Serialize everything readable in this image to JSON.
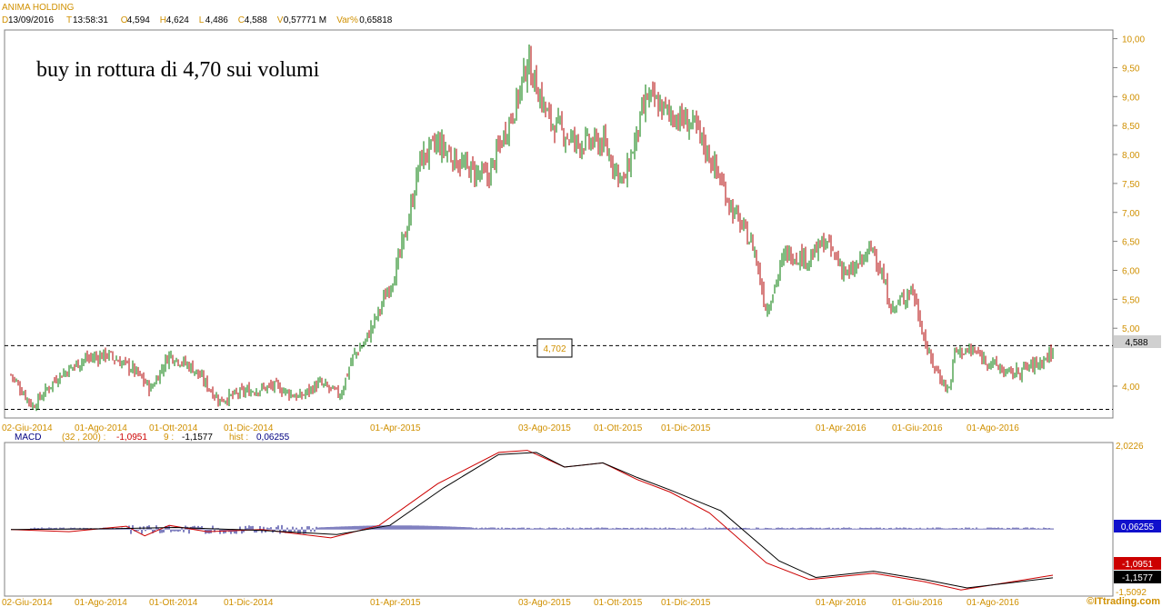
{
  "header": {
    "title": "ANIMA HOLDING",
    "fields": [
      {
        "key": "D",
        "value": "13/09/2016"
      },
      {
        "key": "T",
        "value": "13:58:31"
      },
      {
        "key": "O",
        "value": "4,594"
      },
      {
        "key": "H",
        "value": "4,624"
      },
      {
        "key": "L",
        "value": "4,486"
      },
      {
        "key": "C",
        "value": "4,588"
      },
      {
        "key": "V",
        "value": "0,57771 M"
      },
      {
        "key": "Var%",
        "value": "0,65818"
      }
    ]
  },
  "annotation": "buy in rottura di 4,70 sui volumi",
  "level_box": "4,702",
  "last_price_label": "4,588",
  "price_axis_ticks": [
    "10,00",
    "9,50",
    "9,00",
    "8,50",
    "8,00",
    "7,50",
    "7,00",
    "6,50",
    "6,00",
    "5,50",
    "5,00",
    "4,00"
  ],
  "date_ticks": [
    "02-Giu-2014",
    "01-Ago-2014",
    "01-Ott-2014",
    "01-Dic-2014",
    "01-Apr-2015",
    "03-Ago-2015",
    "01-Ott-2015",
    "01-Dic-2015",
    "01-Apr-2016",
    "01-Giu-2016",
    "01-Ago-2016"
  ],
  "macd_header": {
    "label": "MACD",
    "params": "(32 , 200) :",
    "macd_value": "-1,0951",
    "signal_label": "9 :",
    "signal_value": "-1,1577",
    "hist_label": "hist :",
    "hist_value": "0,06255"
  },
  "macd_axis": {
    "top": "2,0226",
    "bottom": "-1,5092"
  },
  "macd_labels": {
    "hist": "0,06255",
    "macd": "-1,0951",
    "signal": "-1,1577"
  },
  "watermark": "©ITtrading.com",
  "colors": {
    "up": "#007a00",
    "down": "#b00000",
    "macd": "#cc0000",
    "signal": "#000000",
    "hist": "#000080",
    "axis_text": "#d09000"
  },
  "chart_data": [
    {
      "type": "candlestick",
      "title": "ANIMA HOLDING",
      "x_range": [
        "2014-06-02",
        "2016-09-13"
      ],
      "ylim": [
        3.45,
        10.15
      ],
      "horizontal_levels": [
        4.7,
        3.6
      ],
      "points": [
        {
          "date": "2014-06-02",
          "close": 4.2
        },
        {
          "date": "2014-06-20",
          "close": 3.65
        },
        {
          "date": "2014-07-10",
          "close": 4.15
        },
        {
          "date": "2014-07-31",
          "close": 4.45
        },
        {
          "date": "2014-08-20",
          "close": 4.55
        },
        {
          "date": "2014-09-10",
          "close": 4.3
        },
        {
          "date": "2014-09-25",
          "close": 3.95
        },
        {
          "date": "2014-10-10",
          "close": 4.55
        },
        {
          "date": "2014-10-30",
          "close": 4.3
        },
        {
          "date": "2014-11-20",
          "close": 3.75
        },
        {
          "date": "2014-12-10",
          "close": 3.9
        },
        {
          "date": "2015-01-05",
          "close": 4.0
        },
        {
          "date": "2015-01-25",
          "close": 3.8
        },
        {
          "date": "2015-02-10",
          "close": 4.05
        },
        {
          "date": "2015-02-28",
          "close": 3.85
        },
        {
          "date": "2015-03-10",
          "close": 4.5
        },
        {
          "date": "2015-03-20",
          "close": 4.75
        },
        {
          "date": "2015-04-01",
          "close": 5.3
        },
        {
          "date": "2015-04-15",
          "close": 6.0
        },
        {
          "date": "2015-04-25",
          "close": 6.8
        },
        {
          "date": "2015-05-05",
          "close": 7.9
        },
        {
          "date": "2015-05-20",
          "close": 8.2
        },
        {
          "date": "2015-06-10",
          "close": 7.8
        },
        {
          "date": "2015-07-01",
          "close": 7.6
        },
        {
          "date": "2015-07-10",
          "close": 8.1
        },
        {
          "date": "2015-07-25",
          "close": 8.9
        },
        {
          "date": "2015-08-03",
          "close": 9.6
        },
        {
          "date": "2015-08-20",
          "close": 8.6
        },
        {
          "date": "2015-09-10",
          "close": 8.2
        },
        {
          "date": "2015-10-01",
          "close": 8.2
        },
        {
          "date": "2015-10-20",
          "close": 7.5
        },
        {
          "date": "2015-11-10",
          "close": 9.0
        },
        {
          "date": "2015-12-01",
          "close": 8.7
        },
        {
          "date": "2015-12-20",
          "close": 8.5
        },
        {
          "date": "2016-01-05",
          "close": 7.8
        },
        {
          "date": "2016-01-20",
          "close": 7.0
        },
        {
          "date": "2016-02-05",
          "close": 6.4
        },
        {
          "date": "2016-02-15",
          "close": 5.3
        },
        {
          "date": "2016-03-01",
          "close": 6.3
        },
        {
          "date": "2016-03-20",
          "close": 6.2
        },
        {
          "date": "2016-04-01",
          "close": 6.5
        },
        {
          "date": "2016-04-20",
          "close": 5.9
        },
        {
          "date": "2016-05-10",
          "close": 6.4
        },
        {
          "date": "2016-05-25",
          "close": 5.3
        },
        {
          "date": "2016-06-10",
          "close": 5.7
        },
        {
          "date": "2016-06-24",
          "close": 4.5
        },
        {
          "date": "2016-07-10",
          "close": 3.9
        },
        {
          "date": "2016-07-15",
          "close": 4.6
        },
        {
          "date": "2016-07-30",
          "close": 4.6
        },
        {
          "date": "2016-08-20",
          "close": 4.2
        },
        {
          "date": "2016-09-05",
          "close": 4.4
        },
        {
          "date": "2016-09-13",
          "close": 4.588
        }
      ]
    },
    {
      "type": "line",
      "title": "MACD",
      "ylim": [
        -1.5092,
        2.0226
      ],
      "series": [
        {
          "name": "MACD",
          "values": [
            {
              "date": "2014-06-02",
              "y": 0.0
            },
            {
              "date": "2014-07-20",
              "y": -0.05
            },
            {
              "date": "2014-09-05",
              "y": 0.08
            },
            {
              "date": "2014-09-20",
              "y": -0.15
            },
            {
              "date": "2014-10-10",
              "y": 0.1
            },
            {
              "date": "2014-11-10",
              "y": -0.05
            },
            {
              "date": "2014-12-25",
              "y": 0.0
            },
            {
              "date": "2015-02-20",
              "y": -0.2
            },
            {
              "date": "2015-04-01",
              "y": 0.1
            },
            {
              "date": "2015-05-20",
              "y": 1.1
            },
            {
              "date": "2015-07-10",
              "y": 1.85
            },
            {
              "date": "2015-08-03",
              "y": 1.9
            },
            {
              "date": "2015-09-01",
              "y": 1.5
            },
            {
              "date": "2015-10-01",
              "y": 1.6
            },
            {
              "date": "2015-11-01",
              "y": 1.2
            },
            {
              "date": "2015-12-01",
              "y": 0.9
            },
            {
              "date": "2016-01-01",
              "y": 0.4
            },
            {
              "date": "2016-02-15",
              "y": -0.8
            },
            {
              "date": "2016-03-20",
              "y": -1.2
            },
            {
              "date": "2016-05-10",
              "y": -1.05
            },
            {
              "date": "2016-06-20",
              "y": -1.25
            },
            {
              "date": "2016-07-20",
              "y": -1.45
            },
            {
              "date": "2016-09-13",
              "y": -1.0951
            }
          ]
        },
        {
          "name": "9",
          "values": [
            {
              "date": "2014-06-02",
              "y": 0.0
            },
            {
              "date": "2014-08-20",
              "y": 0.02
            },
            {
              "date": "2014-10-15",
              "y": 0.05
            },
            {
              "date": "2014-12-25",
              "y": -0.02
            },
            {
              "date": "2015-02-25",
              "y": -0.12
            },
            {
              "date": "2015-04-10",
              "y": 0.1
            },
            {
              "date": "2015-05-25",
              "y": 1.0
            },
            {
              "date": "2015-07-10",
              "y": 1.8
            },
            {
              "date": "2015-08-10",
              "y": 1.85
            },
            {
              "date": "2015-09-01",
              "y": 1.5
            },
            {
              "date": "2015-10-01",
              "y": 1.6
            },
            {
              "date": "2015-11-01",
              "y": 1.25
            },
            {
              "date": "2015-12-01",
              "y": 0.95
            },
            {
              "date": "2016-01-10",
              "y": 0.45
            },
            {
              "date": "2016-02-25",
              "y": -0.75
            },
            {
              "date": "2016-03-25",
              "y": -1.15
            },
            {
              "date": "2016-05-10",
              "y": -1.0
            },
            {
              "date": "2016-06-20",
              "y": -1.2
            },
            {
              "date": "2016-07-25",
              "y": -1.4
            },
            {
              "date": "2016-09-13",
              "y": -1.1577
            }
          ]
        }
      ],
      "histogram_last": 0.06255
    }
  ]
}
